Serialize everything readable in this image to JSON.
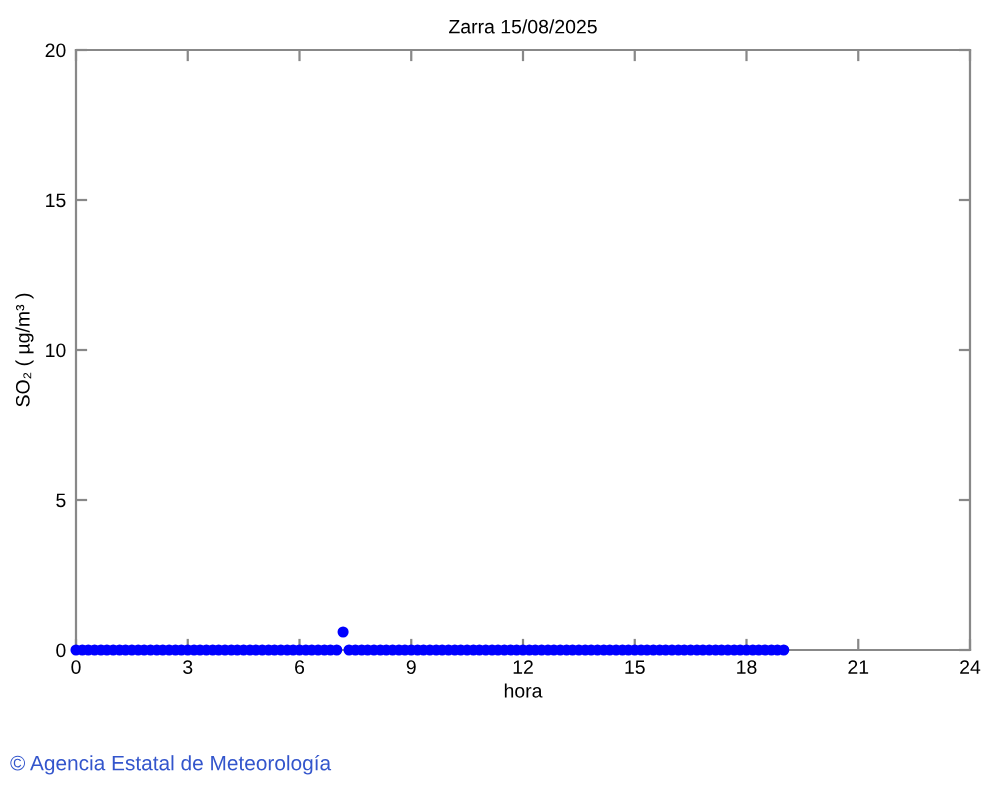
{
  "chart_data": {
    "type": "scatter",
    "title": "Zarra 15/08/2025",
    "xlabel": "hora",
    "ylabel": "SO₂ ( µg/m³ )",
    "annotations": [
      "© Agencia Estatal de Meteorología"
    ],
    "x": [
      0,
      0.17,
      0.33,
      0.5,
      0.67,
      0.83,
      1,
      1.17,
      1.33,
      1.5,
      1.67,
      1.83,
      2,
      2.17,
      2.33,
      2.5,
      2.67,
      2.83,
      3,
      3.17,
      3.33,
      3.5,
      3.67,
      3.83,
      4,
      4.17,
      4.33,
      4.5,
      4.67,
      4.83,
      5,
      5.17,
      5.33,
      5.5,
      5.67,
      5.83,
      6,
      6.17,
      6.33,
      6.5,
      6.67,
      6.83,
      7,
      7.17,
      7.33,
      7.5,
      7.67,
      7.83,
      8,
      8.17,
      8.33,
      8.5,
      8.67,
      8.83,
      9,
      9.17,
      9.33,
      9.5,
      9.67,
      9.83,
      10,
      10.17,
      10.33,
      10.5,
      10.67,
      10.83,
      11,
      11.17,
      11.33,
      11.5,
      11.67,
      11.83,
      12,
      12.17,
      12.33,
      12.5,
      12.67,
      12.83,
      13,
      13.17,
      13.33,
      13.5,
      13.67,
      13.83,
      14,
      14.17,
      14.33,
      14.5,
      14.67,
      14.83,
      15,
      15.17,
      15.33,
      15.5,
      15.67,
      15.83,
      16,
      16.17,
      16.33,
      16.5,
      16.67,
      16.83,
      17,
      17.17,
      17.33,
      17.5,
      17.67,
      17.83,
      18,
      18.17,
      18.33,
      18.5,
      18.67,
      18.83,
      19
    ],
    "series": [
      {
        "color": "#0000ff",
        "values": [
          0,
          0,
          0,
          0,
          0,
          0,
          0,
          0,
          0,
          0,
          0,
          0,
          0,
          0,
          0,
          0,
          0,
          0,
          0,
          0,
          0,
          0,
          0,
          0,
          0,
          0,
          0,
          0,
          0,
          0,
          0,
          0,
          0,
          0,
          0,
          0,
          0,
          0,
          0,
          0,
          0,
          0,
          0,
          0.6,
          0,
          0,
          0,
          0,
          0,
          0,
          0,
          0,
          0,
          0,
          0,
          0,
          0,
          0,
          0,
          0,
          0,
          0,
          0,
          0,
          0,
          0,
          0,
          0,
          0,
          0,
          0,
          0,
          0,
          0,
          0,
          0,
          0,
          0,
          0,
          0,
          0,
          0,
          0,
          0,
          0,
          0,
          0,
          0,
          0,
          0,
          0,
          0,
          0,
          0,
          0,
          0,
          0,
          0,
          0,
          0,
          0,
          0,
          0,
          0,
          0,
          0,
          0,
          0,
          0,
          0,
          0,
          0,
          0,
          0,
          0
        ]
      }
    ],
    "xlim": [
      0,
      24
    ],
    "xticks": [
      0,
      3,
      6,
      9,
      12,
      15,
      18,
      21,
      24
    ],
    "ylim": [
      0,
      20
    ],
    "yticks": [
      0,
      5,
      10,
      15,
      20
    ],
    "marker": "circle",
    "grid": false,
    "legend": false
  }
}
